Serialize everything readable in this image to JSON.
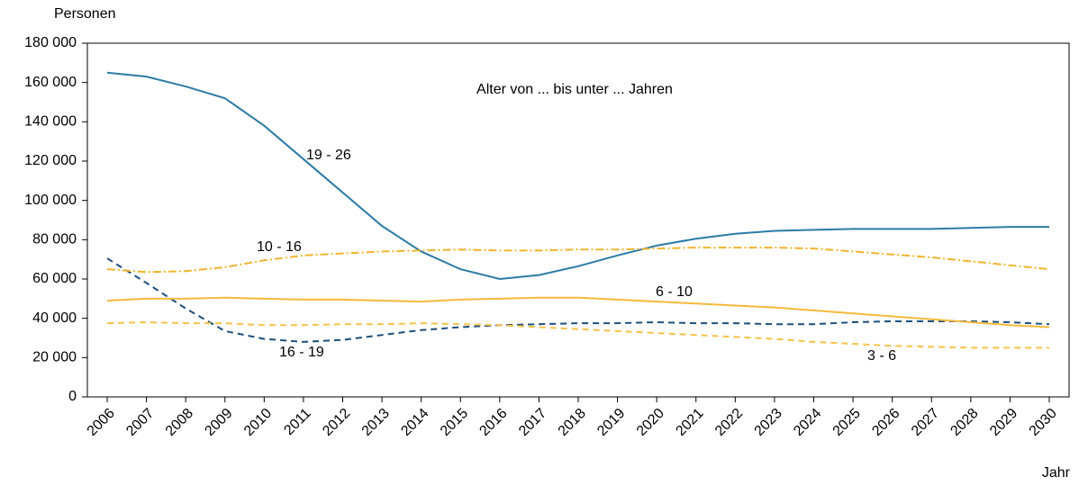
{
  "chart_data": {
    "type": "line",
    "y_label": "Personen",
    "x_label": "Jahr",
    "annotation": "Alter von ... bis unter ... Jahren",
    "categories": [
      "2006",
      "2007",
      "2008",
      "2009",
      "2010",
      "2011",
      "2012",
      "2013",
      "2014",
      "2015",
      "2016",
      "2017",
      "2018",
      "2019",
      "2020",
      "2021",
      "2022",
      "2023",
      "2024",
      "2025",
      "2026",
      "2027",
      "2028",
      "2029",
      "2030"
    ],
    "ylim": [
      0,
      180000
    ],
    "yticks": [
      0,
      {
        "value": 20000,
        "label": "20 000"
      },
      {
        "value": 40000,
        "label": "40 000"
      },
      {
        "value": 60000,
        "label": "60 000"
      },
      {
        "value": 80000,
        "label": "80 000"
      },
      {
        "value": 100000,
        "label": "100 000"
      },
      {
        "value": 120000,
        "label": "120 000"
      },
      {
        "value": 140000,
        "label": "140 000"
      },
      {
        "value": 160000,
        "label": "160 000"
      },
      {
        "value": 180000,
        "label": "180 000"
      }
    ],
    "series": [
      {
        "name": "19 - 26",
        "color": "#2b7ba6",
        "dash": "solid",
        "values": [
          165000,
          163000,
          158000,
          152000,
          138000,
          121000,
          104000,
          87000,
          74000,
          65000,
          60000,
          62000,
          66500,
          72000,
          77000,
          80500,
          83000,
          84500,
          85000,
          85500,
          85500,
          85500,
          86000,
          86500,
          86500
        ]
      },
      {
        "name": "16 - 19",
        "color": "#1c4f7c",
        "dash": "dashed",
        "values": [
          70500,
          58000,
          45000,
          33500,
          29500,
          28000,
          29000,
          31500,
          34000,
          35500,
          36500,
          37000,
          37500,
          37500,
          38000,
          37500,
          37500,
          37000,
          37000,
          38000,
          38500,
          38500,
          38500,
          38000,
          37000
        ]
      },
      {
        "name": "10 - 16",
        "color": "#f2b42f",
        "dash": "dashdot",
        "values": [
          65000,
          63500,
          64000,
          66000,
          69500,
          72000,
          73000,
          74000,
          74500,
          75000,
          74500,
          74500,
          75000,
          75000,
          75500,
          76000,
          76000,
          76000,
          75500,
          74000,
          72500,
          71000,
          69000,
          67000,
          65000
        ]
      },
      {
        "name": "6 - 10",
        "color": "#f5b93d",
        "dash": "solid",
        "values": [
          49000,
          50000,
          50000,
          50500,
          50000,
          49500,
          49500,
          49000,
          48500,
          49500,
          50000,
          50500,
          50500,
          49500,
          48500,
          47500,
          46500,
          45500,
          44000,
          42500,
          41000,
          39500,
          38000,
          36500,
          35500
        ]
      },
      {
        "name": "3 - 6",
        "color": "#f7c24a",
        "dash": "dashed",
        "values": [
          37500,
          38000,
          37500,
          37500,
          36500,
          36500,
          37000,
          37000,
          37500,
          37000,
          36500,
          35500,
          34500,
          33500,
          32500,
          31500,
          30500,
          29500,
          28000,
          27000,
          26000,
          25500,
          25000,
          25000,
          25000
        ]
      }
    ]
  }
}
